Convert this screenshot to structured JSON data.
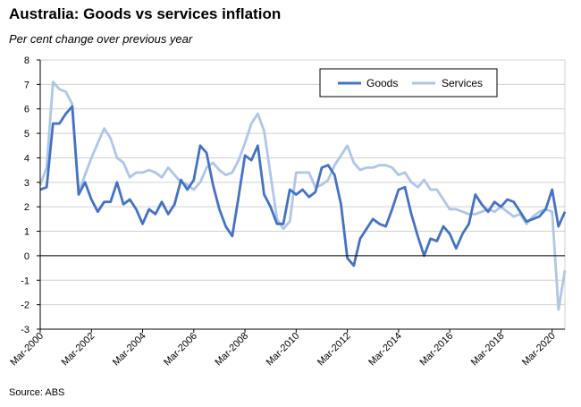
{
  "title": "Australia: Goods vs services inflation",
  "subtitle": "Per cent change over previous year",
  "source": "Source: ABS",
  "chart_data": {
    "type": "line",
    "ylim": [
      -3,
      8
    ],
    "yticks": [
      -3,
      -2,
      -1,
      0,
      1,
      2,
      3,
      4,
      5,
      6,
      7,
      8
    ],
    "grid": true,
    "legend_position": "top-right",
    "xtick_labels": [
      "Mar-2000",
      "Mar-2002",
      "Mar-2004",
      "Mar-2006",
      "Mar-2008",
      "Mar-2010",
      "Mar-2012",
      "Mar-2014",
      "Mar-2016",
      "Mar-2018",
      "Mar-2020"
    ],
    "x_start": "Mar-2000",
    "x_frequency": "quarterly",
    "series": [
      {
        "name": "Goods",
        "color": "#4472c4",
        "values": [
          2.7,
          2.8,
          5.4,
          5.4,
          5.8,
          6.1,
          2.5,
          3.0,
          2.3,
          1.8,
          2.2,
          2.2,
          3.0,
          2.1,
          2.3,
          1.9,
          1.3,
          1.9,
          1.7,
          2.2,
          1.7,
          2.1,
          3.1,
          2.7,
          3.1,
          4.5,
          4.2,
          2.9,
          1.9,
          1.2,
          0.8,
          2.4,
          4.1,
          3.9,
          4.5,
          2.5,
          2.0,
          1.3,
          1.3,
          2.7,
          2.5,
          2.7,
          2.4,
          2.6,
          3.6,
          3.7,
          3.3,
          2.1,
          -0.1,
          -0.4,
          0.7,
          1.1,
          1.5,
          1.3,
          1.2,
          1.9,
          2.7,
          2.8,
          1.7,
          0.8,
          0.0,
          0.7,
          0.6,
          1.2,
          0.9,
          0.3,
          0.9,
          1.3,
          2.5,
          2.1,
          1.8,
          2.2,
          2.0,
          2.3,
          2.2,
          1.8,
          1.4,
          1.5,
          1.6,
          1.9,
          2.7,
          1.2,
          1.8
        ]
      },
      {
        "name": "Services",
        "color": "#aec6e8",
        "values": [
          2.9,
          3.6,
          7.1,
          6.8,
          6.7,
          6.2,
          2.6,
          3.3,
          4.0,
          4.6,
          5.2,
          4.8,
          4.0,
          3.8,
          3.2,
          3.4,
          3.4,
          3.5,
          3.4,
          3.2,
          3.6,
          3.3,
          3.0,
          2.9,
          2.7,
          3.0,
          3.6,
          3.8,
          3.5,
          3.3,
          3.4,
          3.9,
          4.6,
          5.4,
          5.8,
          5.1,
          3.3,
          1.5,
          1.1,
          1.4,
          3.4,
          3.4,
          3.4,
          2.8,
          2.9,
          3.1,
          3.7,
          4.1,
          4.5,
          3.8,
          3.5,
          3.6,
          3.6,
          3.7,
          3.7,
          3.6,
          3.3,
          3.4,
          3.0,
          2.8,
          3.1,
          2.7,
          2.7,
          2.3,
          1.9,
          1.9,
          1.8,
          1.7,
          1.7,
          1.8,
          1.9,
          1.8,
          2.0,
          1.8,
          1.6,
          1.7,
          1.3,
          1.6,
          1.8,
          1.9,
          1.8,
          -2.2,
          -0.6
        ]
      }
    ]
  }
}
